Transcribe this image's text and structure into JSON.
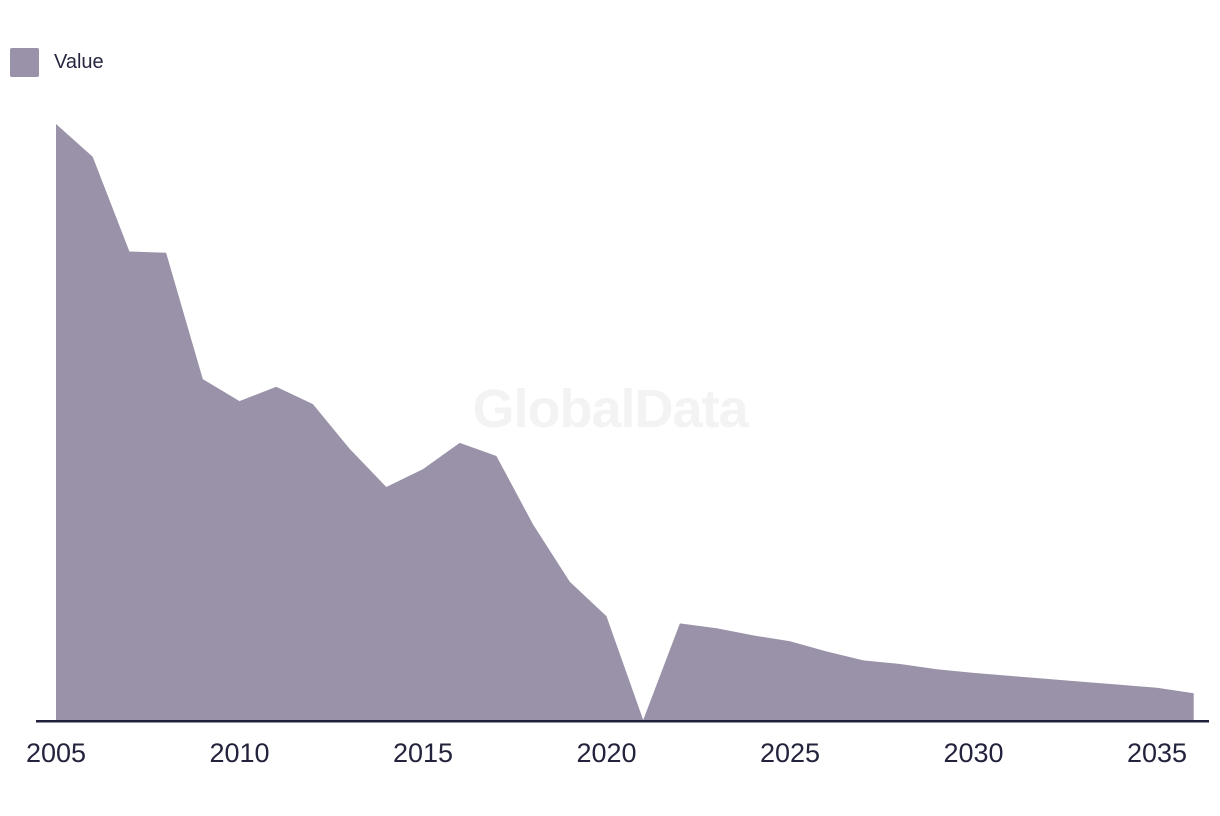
{
  "watermark": "GlobalData",
  "legend": {
    "label": "Value",
    "swatch_color": "#9a92a8"
  },
  "chart_data": {
    "type": "area",
    "title": "",
    "xlabel": "",
    "ylabel": "",
    "x": [
      2005,
      2006,
      2007,
      2008,
      2009,
      2010,
      2011,
      2012,
      2013,
      2014,
      2015,
      2016,
      2017,
      2018,
      2019,
      2020,
      2021,
      2022,
      2023,
      2024,
      2025,
      2026,
      2027,
      2028,
      2029,
      2030,
      2031,
      2032,
      2033,
      2034,
      2035,
      2036
    ],
    "series": [
      {
        "name": "Value",
        "values": [
          100,
          94.5,
          78.6,
          78.4,
          57.2,
          53.5,
          55.9,
          53.0,
          45.5,
          39.1,
          42.1,
          46.5,
          44.3,
          32.8,
          23.2,
          17.4,
          0,
          16.2,
          15.4,
          14.2,
          13.2,
          11.5,
          10.0,
          9.4,
          8.5,
          7.9,
          7.4,
          6.9,
          6.4,
          5.9,
          5.4,
          4.5
        ]
      }
    ],
    "x_ticks": [
      2005,
      2010,
      2015,
      2020,
      2025,
      2030,
      2035
    ],
    "x_tick_labels": [
      "2005",
      "2010",
      "2015",
      "2020",
      "2025",
      "2030",
      "2035"
    ],
    "xlim": [
      2005,
      2036
    ],
    "ylim": [
      0,
      100
    ],
    "y_axis_visible": false,
    "grid": false,
    "legend_position": "top-left",
    "colors": {
      "area_fill": "#9a92a8",
      "axis_line": "#20203a",
      "tick_text": "#23233d",
      "legend_text": "#262640",
      "watermark_text": "#f3f3f3"
    }
  }
}
